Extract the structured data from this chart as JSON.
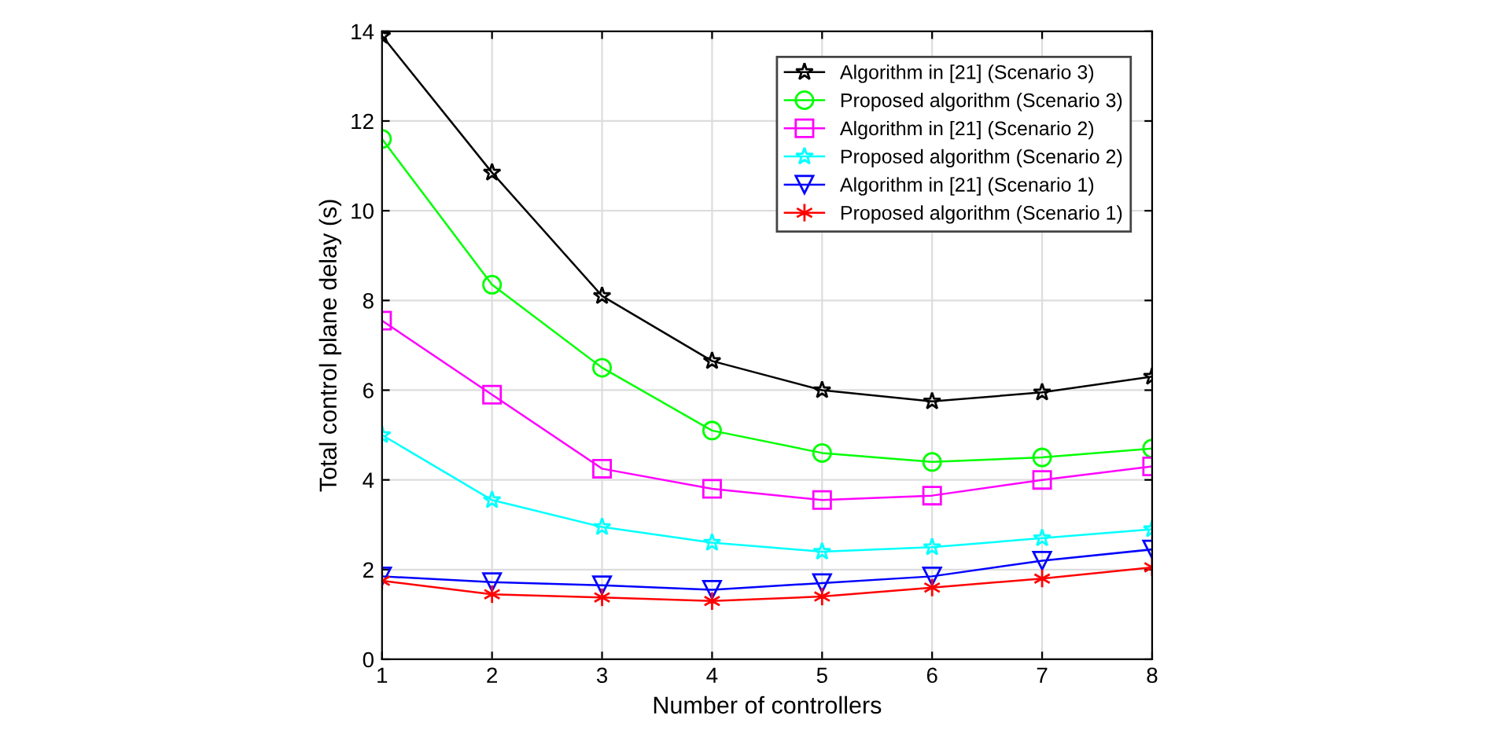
{
  "chart_data": {
    "type": "line",
    "xlabel": "Number of controllers",
    "ylabel": "Total control plane delay (s)",
    "x": [
      1,
      2,
      3,
      4,
      5,
      6,
      7,
      8
    ],
    "series": [
      {
        "name": "Algorithm in [21] (Scenario 3)",
        "color": "#000000",
        "marker": "star",
        "values": [
          13.9,
          10.85,
          8.1,
          6.65,
          6.0,
          5.75,
          5.95,
          6.3
        ]
      },
      {
        "name": "Proposed algorithm (Scenario 3)",
        "color": "#00ff00",
        "marker": "circle",
        "values": [
          11.6,
          8.35,
          6.5,
          5.1,
          4.6,
          4.4,
          4.5,
          4.7
        ]
      },
      {
        "name": "Algorithm in [21] (Scenario 2)",
        "color": "#ff00ff",
        "marker": "square",
        "values": [
          7.55,
          5.9,
          4.25,
          3.8,
          3.55,
          3.65,
          4.0,
          4.3
        ]
      },
      {
        "name": "Proposed algorithm (Scenario 2)",
        "color": "#00ffff",
        "marker": "star",
        "values": [
          5.0,
          3.55,
          2.95,
          2.6,
          2.4,
          2.5,
          2.7,
          2.9
        ]
      },
      {
        "name": "Algorithm in [21] (Scenario 1)",
        "color": "#0000ff",
        "marker": "triangle",
        "values": [
          1.85,
          1.72,
          1.65,
          1.55,
          1.7,
          1.85,
          2.2,
          2.45
        ]
      },
      {
        "name": "Proposed algorithm (Scenario 1)",
        "color": "#ff0000",
        "marker": "cross",
        "values": [
          1.75,
          1.45,
          1.38,
          1.3,
          1.4,
          1.6,
          1.8,
          2.05
        ]
      }
    ],
    "xlim": [
      1,
      8
    ],
    "xticks": [
      1,
      2,
      3,
      4,
      5,
      6,
      7,
      8
    ],
    "ylim": [
      0,
      14
    ],
    "yticks": [
      0,
      2,
      4,
      6,
      8,
      10,
      12,
      14
    ],
    "grid": true,
    "legend": "top right",
    "line_style": "solid"
  }
}
